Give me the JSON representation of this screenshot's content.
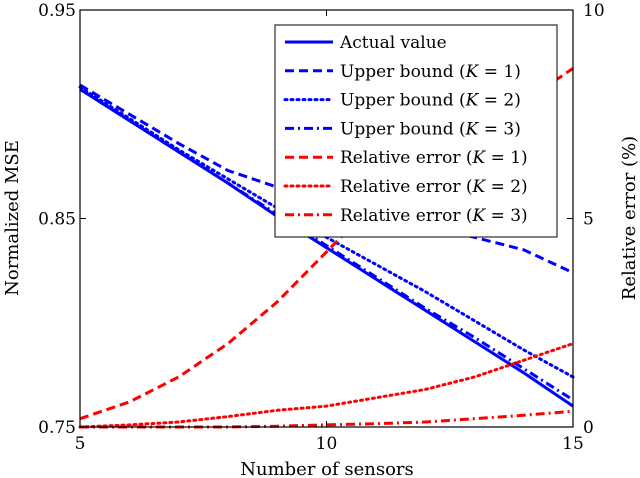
{
  "chart_data": {
    "type": "line",
    "xlabel": "Number of sensors",
    "ylabel_left": "Normalized MSE",
    "ylabel_right": "Relative error (%)",
    "xlim": [
      5,
      15
    ],
    "ylim_left": [
      0.75,
      0.95
    ],
    "ylim_right": [
      0,
      10
    ],
    "x_ticks": [
      "5",
      "10",
      "15"
    ],
    "y_left_ticks": [
      "0.75",
      "0.85",
      "0.95"
    ],
    "y_right_ticks": [
      "0",
      "5",
      "10"
    ],
    "legend_position": "top-right",
    "grid": false,
    "x": [
      5,
      6,
      7,
      8,
      9,
      10,
      11,
      12,
      13,
      14,
      15
    ],
    "series": [
      {
        "name": "Actual value",
        "axis": "left",
        "color": "#0000ff",
        "dash": "solid",
        "values": [
          0.912,
          0.897,
          0.882,
          0.867,
          0.851,
          0.836,
          0.821,
          0.806,
          0.791,
          0.776,
          0.76
        ]
      },
      {
        "name": "Upper bound (K = 1)",
        "axis": "left",
        "color": "#0000ff",
        "dash": "dashed",
        "values": [
          0.914,
          0.9,
          0.886,
          0.873,
          0.865,
          0.859,
          0.853,
          0.847,
          0.841,
          0.835,
          0.824
        ]
      },
      {
        "name": "Upper bound (K = 2)",
        "axis": "left",
        "color": "#0000ff",
        "dash": "dotted",
        "values": [
          0.913,
          0.898,
          0.883,
          0.869,
          0.855,
          0.841,
          0.828,
          0.815,
          0.801,
          0.787,
          0.774
        ]
      },
      {
        "name": "Upper bound (K = 3)",
        "axis": "left",
        "color": "#0000ff",
        "dash": "dashdot",
        "values": [
          0.912,
          0.897,
          0.882,
          0.867,
          0.852,
          0.837,
          0.822,
          0.807,
          0.793,
          0.778,
          0.763
        ]
      },
      {
        "name": "Relative error (K = 1)",
        "axis": "right",
        "color": "#ff0000",
        "dash": "dashed",
        "values": [
          0.2,
          0.6,
          1.2,
          2.0,
          3.0,
          4.2,
          5.4,
          6.2,
          7.0,
          7.8,
          8.6
        ]
      },
      {
        "name": "Relative error (K = 2)",
        "axis": "right",
        "color": "#ff0000",
        "dash": "dotted",
        "values": [
          0.0,
          0.05,
          0.12,
          0.25,
          0.4,
          0.5,
          0.7,
          0.9,
          1.2,
          1.6,
          2.0
        ]
      },
      {
        "name": "Relative error (K = 3)",
        "axis": "right",
        "color": "#ff0000",
        "dash": "dashdot",
        "values": [
          0.0,
          0.0,
          0.0,
          0.0,
          0.02,
          0.05,
          0.08,
          0.12,
          0.2,
          0.28,
          0.38
        ]
      }
    ]
  }
}
